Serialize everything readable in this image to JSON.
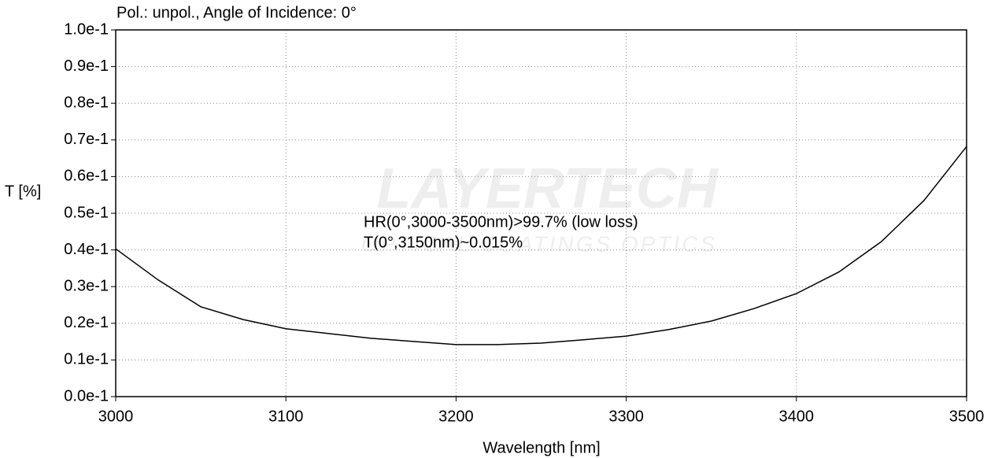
{
  "chart_data": {
    "type": "line",
    "title": "Pol.: unpol., Angle of Incidence: 0°",
    "xlabel": "Wavelength [nm]",
    "ylabel": "T [%]",
    "annotations": [
      "HR(0°,3000-3500nm)>99.7% (low loss)",
      "T(0°,3150nm)~0.015%"
    ],
    "watermark": [
      "LAYERTECH",
      "OPTICAL COATINGS  OPTICS"
    ],
    "x": [
      3000,
      3025,
      3050,
      3075,
      3100,
      3150,
      3200,
      3225,
      3250,
      3275,
      3300,
      3325,
      3350,
      3375,
      3400,
      3425,
      3450,
      3475,
      3500
    ],
    "series": [
      {
        "name": "T",
        "color": "#000000",
        "values": [
          0.0403,
          0.0318,
          0.0245,
          0.021,
          0.0185,
          0.0159,
          0.0142,
          0.0142,
          0.0146,
          0.0155,
          0.0165,
          0.0183,
          0.0206,
          0.024,
          0.0281,
          0.034,
          0.0423,
          0.0535,
          0.0682
        ]
      }
    ],
    "xlim": [
      3000,
      3500
    ],
    "xticks": [
      3000,
      3100,
      3200,
      3300,
      3400,
      3500
    ],
    "ylim": [
      0,
      0.1
    ],
    "yticks": [
      {
        "value": 0,
        "label": "0.0e-1"
      },
      {
        "value": 0.01,
        "label": "0.1e-1"
      },
      {
        "value": 0.02,
        "label": "0.2e-1"
      },
      {
        "value": 0.03,
        "label": "0.3e-1"
      },
      {
        "value": 0.04,
        "label": "0.4e-1"
      },
      {
        "value": 0.05,
        "label": "0.5e-1"
      },
      {
        "value": 0.06,
        "label": "0.6e-1"
      },
      {
        "value": 0.07,
        "label": "0.7e-1"
      },
      {
        "value": 0.08,
        "label": "0.8e-1"
      },
      {
        "value": 0.09,
        "label": "0.9e-1"
      },
      {
        "value": 0.1,
        "label": "1.0e-1"
      }
    ],
    "grid": true
  }
}
